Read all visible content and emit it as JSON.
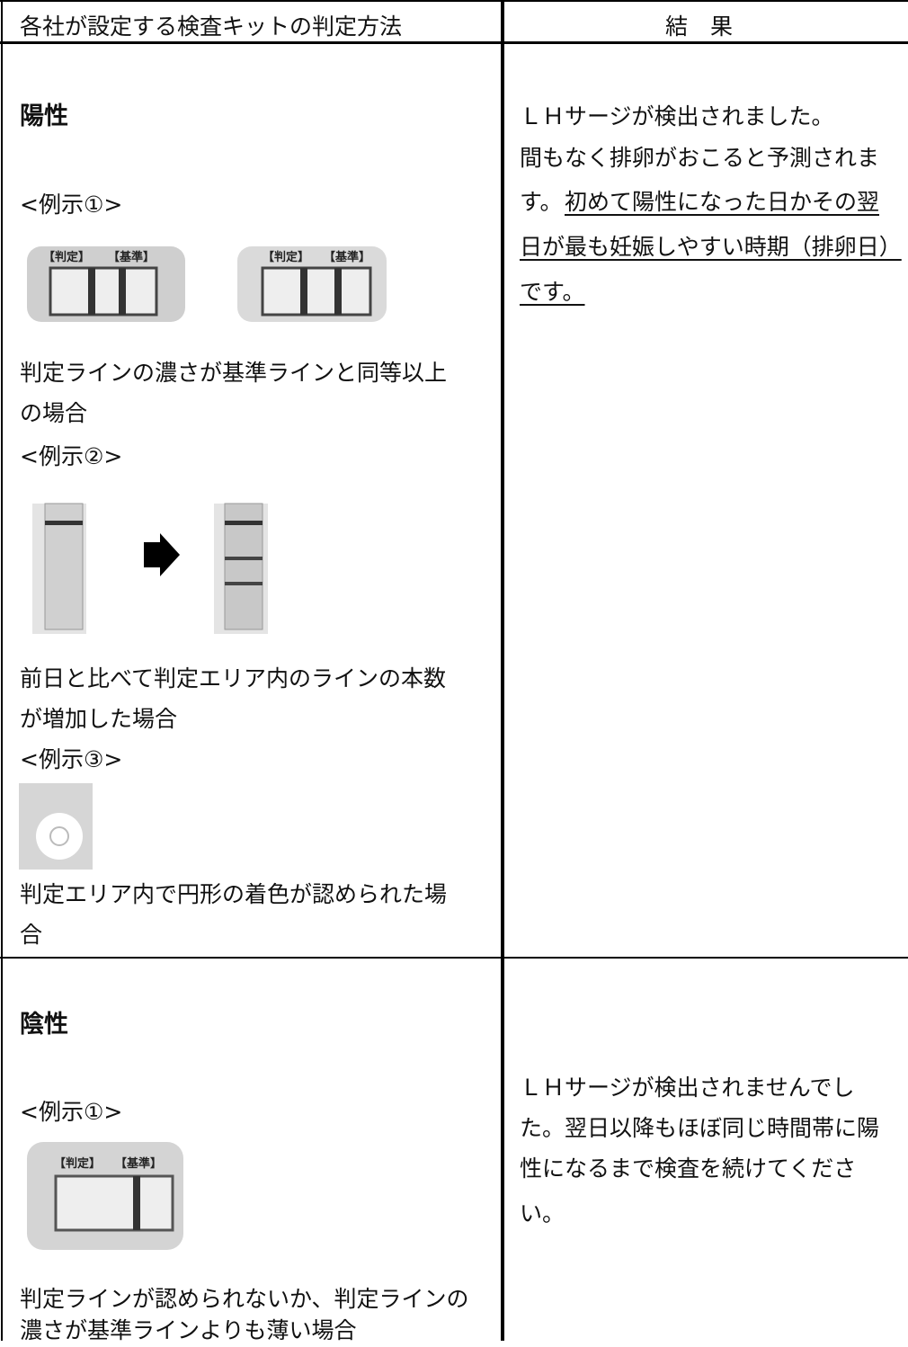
{
  "table": {
    "header": [
      "各社が設定する検査キットの判定方法",
      "結　果"
    ],
    "kit_labels": [
      "【判定】",
      "【基準】"
    ],
    "rows": [
      {
        "method": {
          "heading": "陽性",
          "examples": [
            {
              "label": "<例示①>",
              "caption": [
                "判定ラインの濃さが基準ラインと同等以上",
                "の場合"
              ]
            },
            {
              "label": "<例示②>",
              "caption": [
                "前日と比べて判定エリア内のラインの本数",
                "が増加した場合"
              ]
            },
            {
              "label": "<例示③>",
              "caption": [
                "判定エリア内で円形の着色が認められた場",
                "合"
              ]
            }
          ]
        },
        "result": {
          "lines": [
            "ＬＨサージが検出されました。",
            "間もなく排卵がおこると予測されま",
            "す。"
          ],
          "underlined_lines": [
            "初めて陽性になった日かその翌",
            "日が最も妊娠しやすい時期（排卵日）",
            "です。"
          ]
        }
      },
      {
        "method": {
          "heading": "陰性",
          "examples": [
            {
              "label": "<例示①>",
              "caption": [
                "判定ラインが認められないか、判定ラインの",
                "濃さが基準ラインよりも薄い場合"
              ]
            }
          ]
        },
        "result": {
          "lines": [
            "ＬＨサージが検出されませんでし",
            "た。翌日以降もほぼ同じ時間帯に陽",
            "性になるまで検査を続けてくださ",
            "い。"
          ]
        }
      }
    ]
  }
}
